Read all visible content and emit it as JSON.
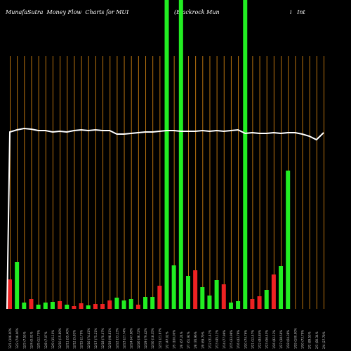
{
  "header": {
    "title_left": "MunafaSutra  Money Flow  Charts for MUI",
    "title_mid": "(Blackrock Mun",
    "title_right": "i   Int"
  },
  "colors": {
    "background": "#000000",
    "up": "#22ee22",
    "down": "#ee2222",
    "grid": "#b8720e",
    "price_line": "#ffffff",
    "label": "#cccccc"
  },
  "chart_data": {
    "type": "bar",
    "ylim": [
      0,
      440
    ],
    "price_ylim": [
      0,
      440
    ],
    "categories": [
      "12/1 (106.00%",
      "12/2 (746.06%",
      "12/3 (7.53%",
      "12/4 (0.02%",
      "12/5 (12.75%",
      "12/8 (7.07%",
      "12/9 (15.10%",
      "12/10 (15.89%",
      "12/11 (55.40%",
      "12/12 (5.83%",
      "12/15 (2.79%",
      "12/16 (74.41%",
      "12/17 (75.21%",
      "12/18 (70.07%",
      "12/19 (98.81%",
      "12/22 (33.23%",
      "12/23 (27.74%",
      "12/24 (47.98%",
      "12/26 (36.72%",
      "12/29 (79.42%",
      "12/30 (18.35%",
      "12/31 (21.87%",
      "1/2 (47.02%",
      "1/5 (100.00%",
      "1/6 (67.24%",
      "1/7 (61.92%",
      "1/8 (76.96%",
      "1/9 (69.79%",
      "1/12 (31.41%",
      "1/13 (45.11%",
      "1/14 (77.99%",
      "1/15 (33.98%",
      "1/16 (43.79%",
      "1/20 (74.76%",
      "1/21 (12.47%",
      "1/22 (84.84%",
      "1/23 (56.43%",
      "1/26 (82.13%",
      "1/27 (38.56%",
      "1/28 (64.38%",
      "1/29 (100.00%",
      "1/30 (73.79%",
      "2/2 (89.53%",
      "2/3 (80.34%",
      "2/4 (27.78%"
    ],
    "values": [
      42,
      67,
      9,
      14,
      6,
      9,
      10,
      11,
      6,
      4,
      8,
      5,
      7,
      7,
      12,
      16,
      12,
      14,
      6,
      17,
      17,
      33,
      440,
      62,
      440,
      47,
      55,
      31,
      19,
      41,
      35,
      9,
      11,
      440,
      14,
      18,
      27,
      49,
      61,
      197,
      0,
      0,
      0,
      0,
      0
    ],
    "directions": [
      "down",
      "up",
      "up",
      "down",
      "up",
      "up",
      "up",
      "down",
      "up",
      "down",
      "down",
      "up",
      "down",
      "down",
      "down",
      "up",
      "up",
      "up",
      "down",
      "up",
      "up",
      "down",
      "up",
      "up",
      "up",
      "up",
      "down",
      "up",
      "up",
      "up",
      "down",
      "up",
      "up",
      "up",
      "down",
      "down",
      "up",
      "down",
      "up",
      "up",
      "up",
      "up",
      "up",
      "up",
      "up"
    ],
    "price_line": [
      252,
      255,
      257,
      256,
      254,
      254,
      252,
      253,
      252,
      254,
      255,
      254,
      255,
      254,
      254,
      249,
      249,
      250,
      251,
      252,
      252,
      253,
      254,
      254,
      253,
      253,
      253,
      254,
      253,
      254,
      253,
      254,
      255,
      250,
      251,
      250,
      250,
      251,
      250,
      251,
      251,
      249,
      246,
      241,
      251
    ]
  }
}
